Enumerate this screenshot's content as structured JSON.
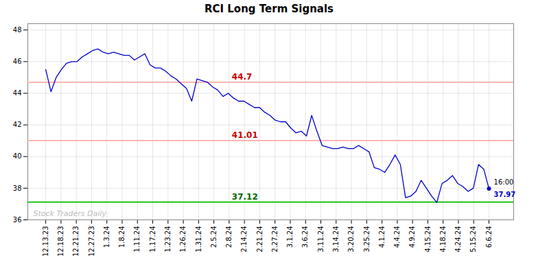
{
  "chart_data": {
    "type": "line",
    "title": "RCI Long Term Signals",
    "x": [
      0,
      1,
      2,
      3,
      4,
      5,
      6,
      7,
      8,
      9,
      10,
      11,
      12,
      13,
      14,
      15,
      16,
      17,
      18,
      19,
      20,
      21,
      22,
      23,
      24,
      25,
      26,
      27,
      28,
      29,
      30,
      31,
      32,
      33,
      34,
      35,
      36,
      37,
      38,
      39,
      40,
      41,
      42,
      43,
      44,
      45,
      46,
      47,
      48,
      49,
      50,
      51,
      52,
      53,
      54,
      55,
      56,
      57,
      58,
      59,
      60,
      61,
      62,
      63,
      64,
      65,
      66,
      67,
      68,
      69,
      70,
      71,
      72,
      73,
      74,
      75,
      76,
      77,
      78,
      79,
      80,
      81,
      82,
      83,
      84,
      85
    ],
    "values": [
      45.5,
      44.1,
      45.0,
      45.5,
      45.9,
      46.0,
      46.0,
      46.3,
      46.5,
      46.7,
      46.8,
      46.6,
      46.5,
      46.6,
      46.5,
      46.4,
      46.4,
      46.1,
      46.3,
      46.5,
      45.8,
      45.6,
      45.6,
      45.4,
      45.1,
      44.9,
      44.6,
      44.3,
      43.5,
      44.9,
      44.8,
      44.7,
      44.4,
      44.2,
      43.8,
      44.0,
      43.7,
      43.5,
      43.5,
      43.3,
      43.1,
      43.1,
      42.8,
      42.6,
      42.3,
      42.2,
      42.2,
      41.8,
      41.5,
      41.6,
      41.3,
      42.6,
      41.6,
      40.7,
      40.6,
      40.5,
      40.5,
      40.6,
      40.5,
      40.5,
      40.7,
      40.5,
      40.3,
      39.3,
      39.2,
      39.0,
      39.5,
      40.1,
      39.5,
      37.4,
      37.5,
      37.8,
      38.5,
      38.0,
      37.5,
      37.1,
      38.3,
      38.5,
      38.8,
      38.3,
      38.1,
      37.8,
      38.0,
      39.5,
      39.2,
      37.97
    ],
    "color": "#0000cc",
    "xlim": [
      -3.44,
      89.73
    ],
    "xticks": [
      {
        "value": 0,
        "label": "12.13.23"
      },
      {
        "value": 2.93103,
        "label": "12.18.23"
      },
      {
        "value": 5.86207,
        "label": "12.21.23"
      },
      {
        "value": 8.7931,
        "label": "12.27.23"
      },
      {
        "value": 11.72414,
        "label": "1.3.24"
      },
      {
        "value": 14.65517,
        "label": "1.8.24"
      },
      {
        "value": 17.58621,
        "label": "1.11.24"
      },
      {
        "value": 20.51724,
        "label": "1.17.24"
      },
      {
        "value": 23.44828,
        "label": "1.23.24"
      },
      {
        "value": 26.37931,
        "label": "1.26.24"
      },
      {
        "value": 29.31034,
        "label": "1.31.24"
      },
      {
        "value": 32.24138,
        "label": "2.5.24"
      },
      {
        "value": 35.17241,
        "label": "2.8.24"
      },
      {
        "value": 38.10345,
        "label": "2.14.24"
      },
      {
        "value": 41.03448,
        "label": "2.21.24"
      },
      {
        "value": 43.96552,
        "label": "2.27.24"
      },
      {
        "value": 46.89655,
        "label": "3.1.24"
      },
      {
        "value": 49.82759,
        "label": "3.6.24"
      },
      {
        "value": 52.75862,
        "label": "3.11.24"
      },
      {
        "value": 55.68966,
        "label": "3.14.24"
      },
      {
        "value": 58.62069,
        "label": "3.20.24"
      },
      {
        "value": 61.55172,
        "label": "3.25.24"
      },
      {
        "value": 64.48276,
        "label": "4.1.24"
      },
      {
        "value": 67.41379,
        "label": "4.4.24"
      },
      {
        "value": 70.34483,
        "label": "4.9.24"
      },
      {
        "value": 73.27586,
        "label": "4.15.24"
      },
      {
        "value": 76.2069,
        "label": "4.18.24"
      },
      {
        "value": 79.13793,
        "label": "4.24.24"
      },
      {
        "value": 82.06897,
        "label": "5.15.24"
      },
      {
        "value": 85,
        "label": "6.6.24"
      }
    ],
    "ylim": [
      36,
      48.4
    ],
    "yticks": [
      36,
      38,
      40,
      42,
      44,
      46,
      48
    ],
    "grid": true,
    "hlines": [
      {
        "y": 44.7,
        "label": "44.7",
        "color": "#ffaaaa",
        "label_color": "#cc0000"
      },
      {
        "y": 41.01,
        "label": "41.01",
        "color": "#ffaaaa",
        "label_color": "#cc0000"
      },
      {
        "y": 37.12,
        "label": "37.12",
        "color": "#00bb00",
        "label_color": "#006600"
      }
    ],
    "annotations": [
      {
        "text": "16:00",
        "anchor": "last",
        "color": "#000000"
      },
      {
        "text": "37.97",
        "anchor": "last",
        "color": "#0000cc"
      },
      {
        "text": "Stock Traders Daily",
        "anchor": "bottom-left",
        "color": "#bbbbbb"
      }
    ]
  }
}
